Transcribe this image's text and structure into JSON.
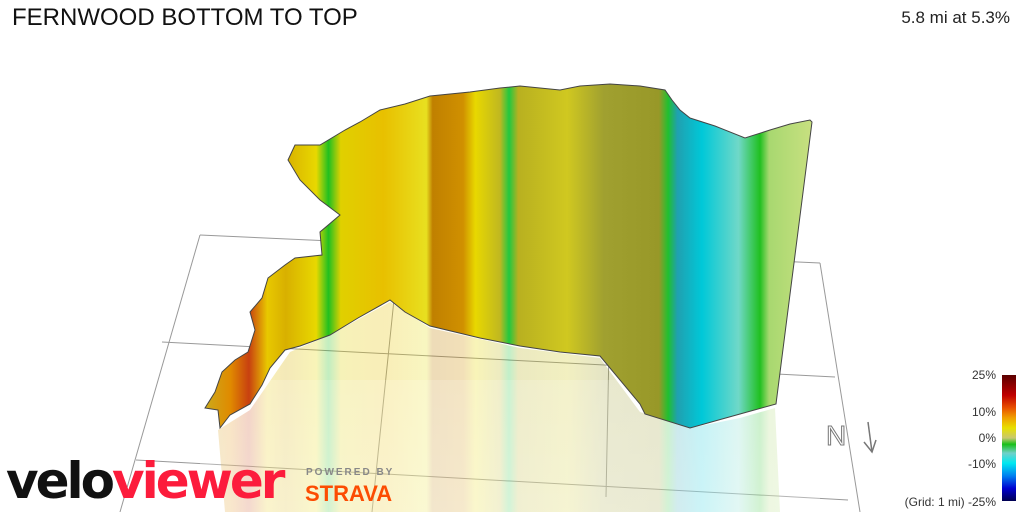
{
  "title": "FERNWOOD BOTTOM TO TOP",
  "stats": "5.8 mi at 5.3%",
  "legend": {
    "labels": [
      "25%",
      "10%",
      "0%",
      "-10%",
      "-25%"
    ],
    "grid_note": "(Grid: 1 mi)",
    "colors": [
      "#5a0000",
      "#c00000",
      "#f0a000",
      "#e8e000",
      "#18c018",
      "#00e8f0",
      "#0000d0",
      "#000050"
    ]
  },
  "compass": {
    "label": "N",
    "icon": "north-arrow-icon"
  },
  "branding": {
    "logo_part1": "velo",
    "logo_part2": "viewer",
    "powered_by": "POWERED BY",
    "strava": "STRAVA",
    "logo_color": "#fc1c3c",
    "strava_color": "#fc4c02"
  }
}
